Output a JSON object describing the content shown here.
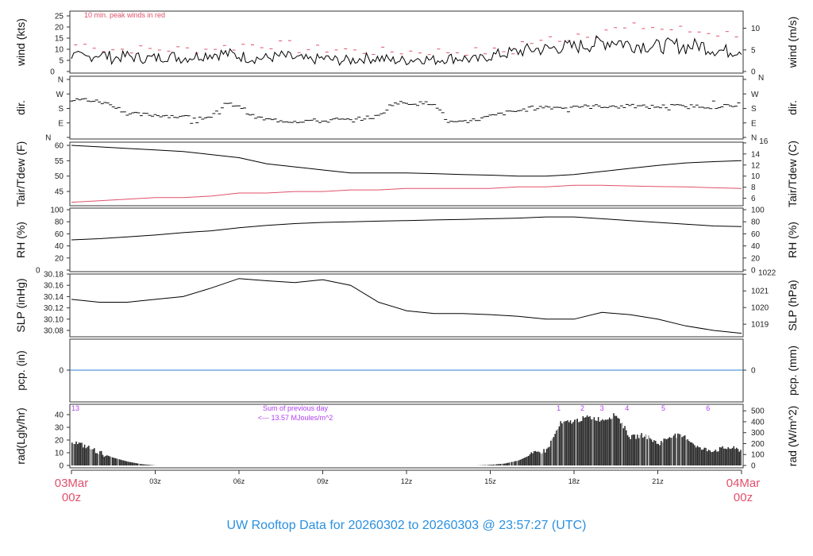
{
  "title": "UW Rooftop Data for 20260302  to  20260303 @ 23:57:27  (UTC)",
  "x_start": {
    "date": "03Mar",
    "time": "00z"
  },
  "x_end": {
    "date": "04Mar",
    "time": "00z"
  },
  "chart_data": [
    {
      "type": "line",
      "name": "wind",
      "ylabel": "wind (kts)",
      "ylabel_right": "wind (m/s)",
      "ylim": [
        0,
        25
      ],
      "yticks": [
        0,
        5,
        10,
        15,
        20,
        25
      ],
      "yticks_right": [
        0,
        5,
        10
      ],
      "note": "10 min. peak winds in red",
      "series_color": "#000000",
      "gust_color": "#e0506a",
      "x_hours_step": 0.5,
      "values": [
        7,
        6,
        8,
        6,
        7,
        6,
        6,
        7,
        6,
        7,
        8,
        8,
        7,
        6,
        6,
        7,
        6,
        5,
        6,
        5,
        5,
        6,
        6,
        5,
        5,
        6,
        5,
        6,
        6,
        5,
        7,
        8,
        9,
        10,
        10,
        11,
        11,
        12,
        13,
        14,
        12,
        12,
        11,
        12,
        11,
        12,
        10,
        9,
        10
      ],
      "gusts": [
        12,
        10,
        10,
        10,
        10,
        11,
        12,
        12,
        10,
        10,
        9,
        9,
        9,
        9,
        9,
        9,
        13,
        15,
        17,
        19,
        20,
        19,
        18,
        17
      ]
    },
    {
      "type": "scatter",
      "name": "dir",
      "ylabel": "dir.",
      "ylabel_right": "dir.",
      "ylim": [
        0,
        360
      ],
      "yticks": [
        "N",
        "E",
        "S",
        "W",
        "N"
      ],
      "x_hours_step": 0.5,
      "values": [
        230,
        235,
        220,
        200,
        150,
        140,
        140,
        135,
        125,
        125,
        120,
        205,
        200,
        130,
        110,
        105,
        100,
        105,
        100,
        110,
        105,
        120,
        130,
        210,
        215,
        210,
        215,
        95,
        90,
        110,
        130,
        150,
        165,
        180,
        190,
        185,
        195,
        190,
        195,
        190,
        195,
        190,
        190,
        195,
        190,
        195,
        190,
        195,
        190
      ]
    },
    {
      "type": "line",
      "name": "temp",
      "ylabel": "Tair/Tdew (F)",
      "ylabel_right": "Tair/Tdew (C)",
      "ylim": [
        42,
        61
      ],
      "yticks": [
        45,
        50,
        55,
        60
      ],
      "yticks_right": [
        6,
        8,
        10,
        12,
        14,
        16
      ],
      "x_hours_step": 1,
      "series": [
        {
          "name": "Tair",
          "color": "#000000",
          "values": [
            60,
            59.5,
            59,
            58.5,
            58,
            57,
            56,
            54,
            53,
            52,
            51,
            51,
            51,
            50.8,
            50.5,
            50.3,
            50,
            50,
            50.5,
            51.5,
            52.5,
            53.5,
            54.3,
            54.7,
            55
          ]
        },
        {
          "name": "Tdew",
          "color": "#e0506a",
          "values": [
            41.5,
            42,
            42.5,
            43,
            43,
            43.5,
            44.5,
            44.5,
            45,
            45,
            45.5,
            45.5,
            46,
            46,
            46,
            46,
            46.5,
            46.5,
            47,
            47,
            46.8,
            46.6,
            46.5,
            46.2,
            46
          ]
        }
      ]
    },
    {
      "type": "line",
      "name": "rh",
      "ylabel": "RH (%)",
      "ylabel_right": "RH (%)",
      "ylim": [
        0,
        100
      ],
      "yticks": [
        0,
        20,
        40,
        60,
        80,
        100
      ],
      "yticks_right": [
        0,
        20,
        40,
        60,
        80,
        100
      ],
      "x_hours_step": 1,
      "values": [
        50,
        52,
        55,
        58,
        62,
        65,
        70,
        74,
        77,
        79,
        80,
        81,
        82,
        83,
        84,
        85,
        86,
        88,
        88,
        85,
        82,
        79,
        76,
        73,
        72
      ]
    },
    {
      "type": "line",
      "name": "slp",
      "ylabel": "SLP (inHg)",
      "ylabel_right": "SLP (hPa)",
      "ylim": [
        30.07,
        30.18
      ],
      "yticks": [
        30.08,
        30.1,
        30.12,
        30.14,
        30.16,
        30.18
      ],
      "yticks_right": [
        1019,
        1020,
        1021,
        1022
      ],
      "x_hours_step": 1,
      "values": [
        30.135,
        30.13,
        30.13,
        30.135,
        30.14,
        30.155,
        30.172,
        30.168,
        30.165,
        30.17,
        30.16,
        30.13,
        30.115,
        30.11,
        30.11,
        30.108,
        30.105,
        30.1,
        30.1,
        30.112,
        30.108,
        30.1,
        30.088,
        30.08,
        30.075
      ]
    },
    {
      "type": "line",
      "name": "pcp",
      "ylabel": "pcp. (in)",
      "ylabel_right": "pcp. (mm)",
      "yticks": [
        0
      ],
      "yticks_right": [
        0
      ],
      "color": "#2a7fd0",
      "values": [
        0,
        0
      ]
    },
    {
      "type": "bar",
      "name": "rad",
      "ylabel": "rad(Lgly/hr)",
      "ylabel_right": "rad (W/m^2)",
      "ylim": [
        0,
        46
      ],
      "yticks": [
        0,
        10,
        20,
        30,
        40
      ],
      "yticks_right": [
        0,
        100,
        200,
        300,
        400,
        500
      ],
      "x_hours_step": 0.5,
      "values": [
        19,
        15,
        10,
        6,
        3,
        1,
        0,
        0,
        0,
        0,
        0,
        0,
        0,
        0,
        0,
        0,
        0,
        0,
        0,
        0,
        0,
        0,
        0,
        0,
        0,
        0,
        0,
        0,
        0,
        0,
        0.5,
        1.5,
        4,
        9,
        12,
        33,
        35,
        38,
        36,
        40,
        22,
        24,
        17,
        24,
        22,
        13,
        12,
        14,
        12
      ],
      "prev_day_value": "13",
      "prev_day_text": [
        "Sum of previous day",
        "<--- 13.57 MJoules/m^2"
      ],
      "hour_marks": [
        {
          "label": "1",
          "hour": 17.45
        },
        {
          "label": "2",
          "hour": 18.3
        },
        {
          "label": "3",
          "hour": 19.0
        },
        {
          "label": "4",
          "hour": 19.9
        },
        {
          "label": "5",
          "hour": 21.2
        },
        {
          "label": "6",
          "hour": 22.8
        }
      ]
    }
  ],
  "x_ticks": [
    {
      "label": "03z",
      "hour": 3
    },
    {
      "label": "06z",
      "hour": 6
    },
    {
      "label": "09z",
      "hour": 9
    },
    {
      "label": "12z",
      "hour": 12
    },
    {
      "label": "15z",
      "hour": 15
    },
    {
      "label": "18z",
      "hour": 18
    },
    {
      "label": "21z",
      "hour": 21
    }
  ]
}
